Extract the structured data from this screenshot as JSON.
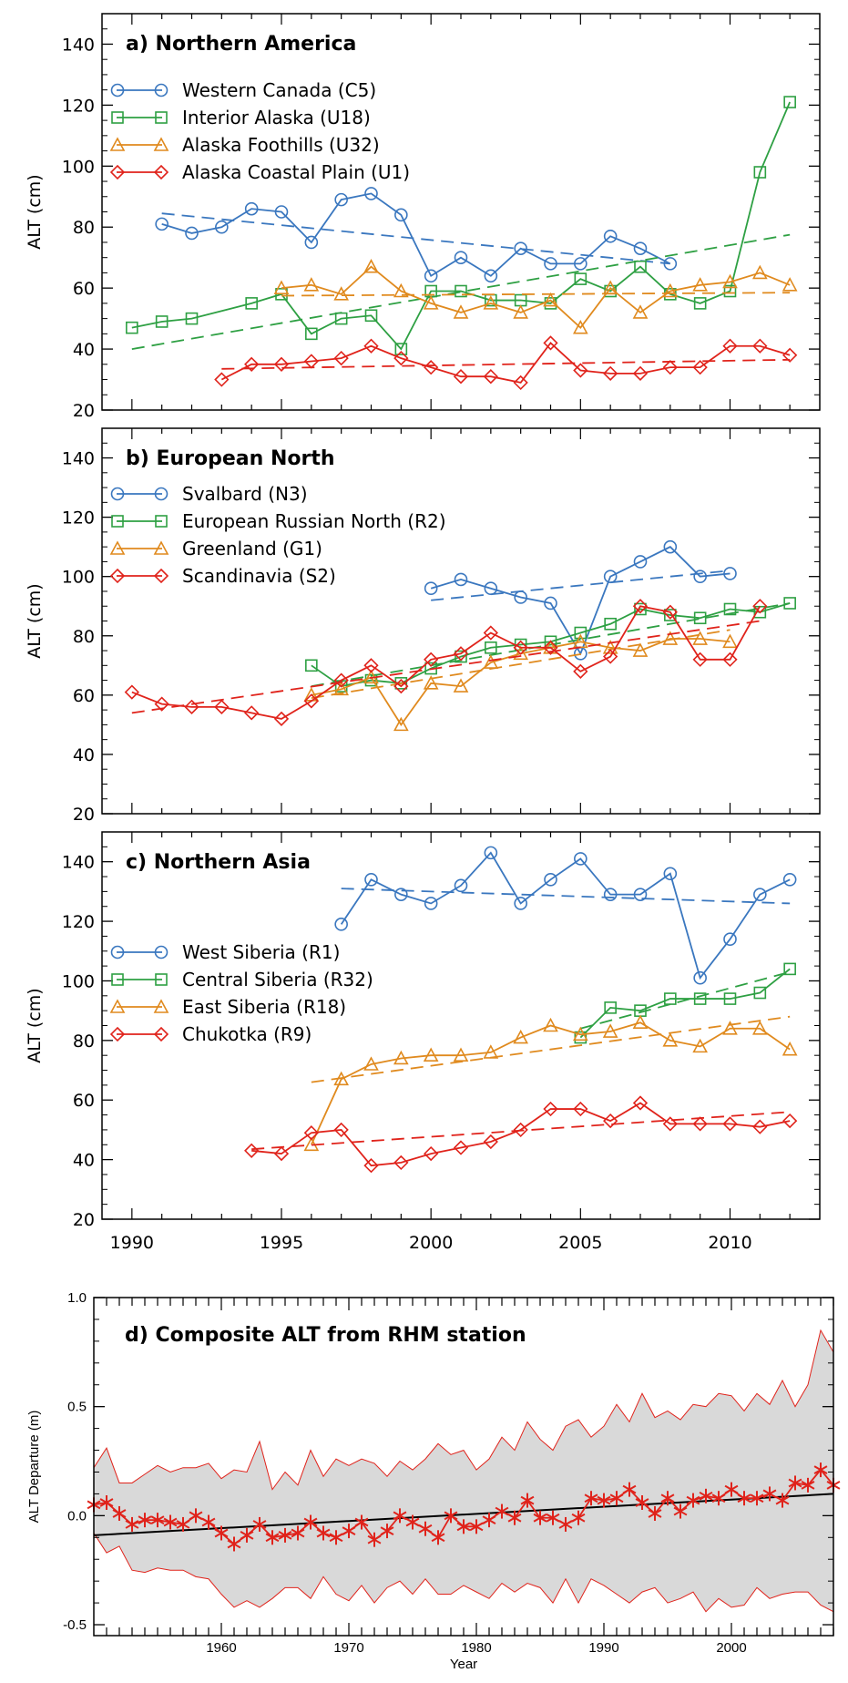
{
  "chart_data": [
    {
      "type": "line",
      "title": "a) Northern America",
      "ylabel": "ALT (cm)",
      "xlim": [
        1989,
        2013
      ],
      "ylim": [
        20,
        150
      ],
      "yticks": [
        20,
        40,
        60,
        80,
        100,
        120,
        140
      ],
      "legend_position": "top-left",
      "series": [
        {
          "name": "Western Canada (C5)",
          "color": "#3a77bf",
          "marker": "circle",
          "x": [
            1991,
            1992,
            1993,
            1994,
            1995,
            1996,
            1997,
            1998,
            1999,
            2000,
            2001,
            2002,
            2003,
            2004,
            2005,
            2006,
            2007,
            2008
          ],
          "y": [
            81,
            78,
            80,
            86,
            85,
            75,
            89,
            91,
            84,
            64,
            70,
            64,
            73,
            68,
            68,
            77,
            73,
            68
          ],
          "trend": [
            [
              1991,
              84.5
            ],
            [
              2008,
              68
            ]
          ]
        },
        {
          "name": "Interior Alaska (U18)",
          "color": "#2ea043",
          "marker": "square",
          "x": [
            1990,
            1991,
            1992,
            1994,
            1995,
            1996,
            1997,
            1998,
            1999,
            2000,
            2001,
            2002,
            2003,
            2004,
            2005,
            2006,
            2007,
            2008,
            2009,
            2010,
            2011,
            2012
          ],
          "y": [
            47,
            49,
            50,
            55,
            58,
            45,
            50,
            51,
            40,
            59,
            59,
            56,
            56,
            55,
            63,
            59,
            67,
            58,
            55,
            59,
            98,
            121
          ],
          "trend": [
            [
              1990,
              40
            ],
            [
              2012,
              77.5
            ]
          ]
        },
        {
          "name": "Alaska Foothills (U32)",
          "color": "#e08a1e",
          "marker": "triangle",
          "x": [
            1995,
            1996,
            1997,
            1998,
            1999,
            2000,
            2001,
            2002,
            2003,
            2004,
            2005,
            2006,
            2007,
            2008,
            2009,
            2010,
            2011,
            2012
          ],
          "y": [
            60,
            61,
            58,
            67,
            59,
            55,
            52,
            55,
            52,
            56,
            47,
            60,
            52,
            59,
            61,
            62,
            65,
            61
          ],
          "trend": [
            [
              1995,
              57.5
            ],
            [
              2012,
              58.5
            ]
          ]
        },
        {
          "name": "Alaska Coastal Plain (U1)",
          "color": "#e0231b",
          "marker": "diamond",
          "x": [
            1993,
            1994,
            1995,
            1996,
            1997,
            1998,
            1999,
            2000,
            2001,
            2002,
            2003,
            2004,
            2005,
            2006,
            2007,
            2008,
            2009,
            2010,
            2011,
            2012
          ],
          "y": [
            30,
            35,
            35,
            36,
            37,
            41,
            37,
            34,
            31,
            31,
            29,
            42,
            33,
            32,
            32,
            34,
            34,
            41,
            41,
            38
          ],
          "trend": [
            [
              1993,
              33.5
            ],
            [
              2012,
              36.5
            ]
          ]
        }
      ]
    },
    {
      "type": "line",
      "title": "b) European North",
      "ylabel": "ALT (cm)",
      "xlim": [
        1989,
        2013
      ],
      "ylim": [
        20,
        150
      ],
      "yticks": [
        20,
        40,
        60,
        80,
        100,
        120,
        140
      ],
      "legend_position": "top-left",
      "series": [
        {
          "name": "Svalbard (N3)",
          "color": "#3a77bf",
          "marker": "circle",
          "x": [
            2000,
            2001,
            2002,
            2003,
            2004,
            2005,
            2006,
            2007,
            2008,
            2009,
            2010
          ],
          "y": [
            96,
            99,
            96,
            93,
            91,
            74,
            100,
            105,
            110,
            100,
            101
          ],
          "trend": [
            [
              2000,
              92
            ],
            [
              2010,
              102
            ]
          ]
        },
        {
          "name": "European Russian North (R2)",
          "color": "#2ea043",
          "marker": "square",
          "x": [
            1996,
            1997,
            1998,
            1999,
            2000,
            2001,
            2002,
            2003,
            2004,
            2005,
            2006,
            2007,
            2008,
            2009,
            2010,
            2011,
            2012
          ],
          "y": [
            70,
            63,
            65,
            64,
            69,
            73,
            76,
            77,
            78,
            81,
            84,
            89,
            87,
            86,
            89,
            88,
            91
          ],
          "trend": [
            [
              1996,
              63
            ],
            [
              2012,
              91
            ]
          ]
        },
        {
          "name": "Greenland (G1)",
          "color": "#e08a1e",
          "marker": "triangle",
          "x": [
            1996,
            1997,
            1998,
            1999,
            2000,
            2001,
            2002,
            2003,
            2004,
            2005,
            2006,
            2007,
            2008,
            2009,
            2010
          ],
          "y": [
            60,
            62,
            66,
            50,
            64,
            63,
            71,
            74,
            76,
            78,
            76,
            75,
            79,
            79,
            78
          ],
          "trend": [
            [
              1996,
              59
            ],
            [
              2010,
              82
            ]
          ]
        },
        {
          "name": "Scandinavia (S2)",
          "color": "#e0231b",
          "marker": "diamond",
          "x": [
            1990,
            1991,
            1992,
            1993,
            1994,
            1995,
            1996,
            1997,
            1998,
            1999,
            2000,
            2001,
            2002,
            2003,
            2004,
            2005,
            2006,
            2007,
            2008,
            2009,
            2010,
            2011
          ],
          "y": [
            61,
            57,
            56,
            56,
            54,
            52,
            58,
            65,
            70,
            63,
            72,
            74,
            81,
            76,
            76,
            68,
            73,
            90,
            88,
            72,
            72,
            90
          ],
          "trend": [
            [
              1990,
              54
            ],
            [
              2011,
              85
            ]
          ]
        }
      ]
    },
    {
      "type": "line",
      "title": "c) Northern Asia",
      "ylabel": "ALT (cm)",
      "xlabel": "",
      "xlim": [
        1989,
        2013
      ],
      "ylim": [
        20,
        150
      ],
      "yticks": [
        20,
        40,
        60,
        80,
        100,
        120,
        140
      ],
      "xticks": [
        1990,
        1995,
        2000,
        2005,
        2010
      ],
      "legend_position": "middle-left",
      "series": [
        {
          "name": "West Siberia (R1)",
          "color": "#3a77bf",
          "marker": "circle",
          "x": [
            1997,
            1998,
            1999,
            2000,
            2001,
            2002,
            2003,
            2004,
            2005,
            2006,
            2007,
            2008,
            2009,
            2010,
            2011,
            2012
          ],
          "y": [
            119,
            134,
            129,
            126,
            132,
            143,
            126,
            134,
            141,
            129,
            129,
            136,
            101,
            114,
            129,
            134
          ],
          "trend": [
            [
              1997,
              131
            ],
            [
              2012,
              126
            ]
          ]
        },
        {
          "name": "Central Siberia (R32)",
          "color": "#2ea043",
          "marker": "square",
          "x": [
            2005,
            2006,
            2007,
            2008,
            2009,
            2010,
            2011,
            2012
          ],
          "y": [
            81,
            91,
            90,
            94,
            94,
            94,
            96,
            104
          ],
          "trend": [
            [
              2005,
              84
            ],
            [
              2012,
              103
            ]
          ]
        },
        {
          "name": "East Siberia (R18)",
          "color": "#e08a1e",
          "marker": "triangle",
          "x": [
            1996,
            1997,
            1998,
            1999,
            2000,
            2001,
            2002,
            2003,
            2004,
            2005,
            2006,
            2007,
            2008,
            2009,
            2010,
            2011,
            2012
          ],
          "y": [
            45,
            67,
            72,
            74,
            75,
            75,
            76,
            81,
            85,
            82,
            83,
            86,
            80,
            78,
            84,
            84,
            77
          ],
          "trend": [
            [
              1996,
              66
            ],
            [
              2012,
              88
            ]
          ]
        },
        {
          "name": "Chukotka (R9)",
          "color": "#e0231b",
          "marker": "diamond",
          "x": [
            1994,
            1995,
            1996,
            1997,
            1998,
            1999,
            2000,
            2001,
            2002,
            2003,
            2004,
            2005,
            2006,
            2007,
            2008,
            2009,
            2010,
            2011,
            2012
          ],
          "y": [
            43,
            42,
            49,
            50,
            38,
            39,
            42,
            44,
            46,
            50,
            57,
            57,
            53,
            59,
            52,
            52,
            52,
            51,
            53
          ],
          "trend": [
            [
              1994,
              43.5
            ],
            [
              2012,
              56
            ]
          ]
        }
      ]
    },
    {
      "type": "area",
      "title": "d) Composite ALT from RHM station",
      "xlabel": "Year",
      "ylabel": "ALT Departure (m)",
      "xlim": [
        1950,
        2008
      ],
      "ylim": [
        -0.55,
        1.0
      ],
      "yticks": [
        -0.5,
        0.0,
        0.5,
        1.0
      ],
      "ytick_labels": [
        "-0.5",
        "0.0",
        "0.5",
        "1.0"
      ],
      "xticks": [
        1960,
        1970,
        1980,
        1990,
        2000
      ],
      "band_color": "#d9d9d9",
      "band_edge_color": "#e0231b",
      "marker_color": "#e0231b",
      "trend_color": "#000000",
      "x": [
        1950,
        1951,
        1952,
        1953,
        1954,
        1955,
        1956,
        1957,
        1958,
        1959,
        1960,
        1961,
        1962,
        1963,
        1964,
        1965,
        1966,
        1967,
        1968,
        1969,
        1970,
        1971,
        1972,
        1973,
        1974,
        1975,
        1976,
        1977,
        1978,
        1979,
        1980,
        1981,
        1982,
        1983,
        1984,
        1985,
        1986,
        1987,
        1988,
        1989,
        1990,
        1991,
        1992,
        1993,
        1994,
        1995,
        1996,
        1997,
        1998,
        1999,
        2000,
        2001,
        2002,
        2003,
        2004,
        2005,
        2006,
        2007,
        2008
      ],
      "mean": [
        0.05,
        0.06,
        0.01,
        -0.04,
        -0.02,
        -0.02,
        -0.03,
        -0.04,
        0.0,
        -0.03,
        -0.08,
        -0.13,
        -0.09,
        -0.04,
        -0.1,
        -0.09,
        -0.08,
        -0.03,
        -0.08,
        -0.1,
        -0.07,
        -0.03,
        -0.11,
        -0.07,
        0.0,
        -0.03,
        -0.06,
        -0.1,
        0.0,
        -0.05,
        -0.05,
        -0.02,
        0.02,
        -0.01,
        0.07,
        -0.01,
        -0.01,
        -0.04,
        -0.01,
        0.08,
        0.07,
        0.08,
        0.12,
        0.06,
        0.01,
        0.08,
        0.02,
        0.07,
        0.09,
        0.08,
        0.12,
        0.08,
        0.08,
        0.1,
        0.07,
        0.15,
        0.14,
        0.21,
        0.14
      ],
      "upper": [
        0.22,
        0.31,
        0.15,
        0.15,
        0.19,
        0.23,
        0.2,
        0.22,
        0.22,
        0.24,
        0.17,
        0.21,
        0.2,
        0.34,
        0.12,
        0.2,
        0.14,
        0.3,
        0.18,
        0.26,
        0.23,
        0.26,
        0.24,
        0.18,
        0.25,
        0.21,
        0.26,
        0.33,
        0.28,
        0.3,
        0.21,
        0.26,
        0.36,
        0.3,
        0.43,
        0.35,
        0.3,
        0.41,
        0.44,
        0.36,
        0.41,
        0.51,
        0.43,
        0.56,
        0.45,
        0.48,
        0.44,
        0.51,
        0.5,
        0.56,
        0.55,
        0.48,
        0.56,
        0.51,
        0.62,
        0.5,
        0.6,
        0.85,
        0.75
      ],
      "lower": [
        -0.08,
        -0.17,
        -0.14,
        -0.25,
        -0.26,
        -0.24,
        -0.25,
        -0.25,
        -0.28,
        -0.29,
        -0.36,
        -0.42,
        -0.39,
        -0.42,
        -0.38,
        -0.33,
        -0.33,
        -0.38,
        -0.28,
        -0.36,
        -0.39,
        -0.32,
        -0.4,
        -0.33,
        -0.3,
        -0.36,
        -0.29,
        -0.36,
        -0.36,
        -0.32,
        -0.35,
        -0.38,
        -0.31,
        -0.35,
        -0.31,
        -0.33,
        -0.4,
        -0.29,
        -0.4,
        -0.29,
        -0.32,
        -0.36,
        -0.4,
        -0.35,
        -0.33,
        -0.4,
        -0.38,
        -0.35,
        -0.44,
        -0.38,
        -0.42,
        -0.41,
        -0.33,
        -0.38,
        -0.36,
        -0.35,
        -0.35,
        -0.41,
        -0.44
      ],
      "trend": [
        [
          1950,
          -0.09
        ],
        [
          2008,
          0.1
        ]
      ]
    }
  ]
}
